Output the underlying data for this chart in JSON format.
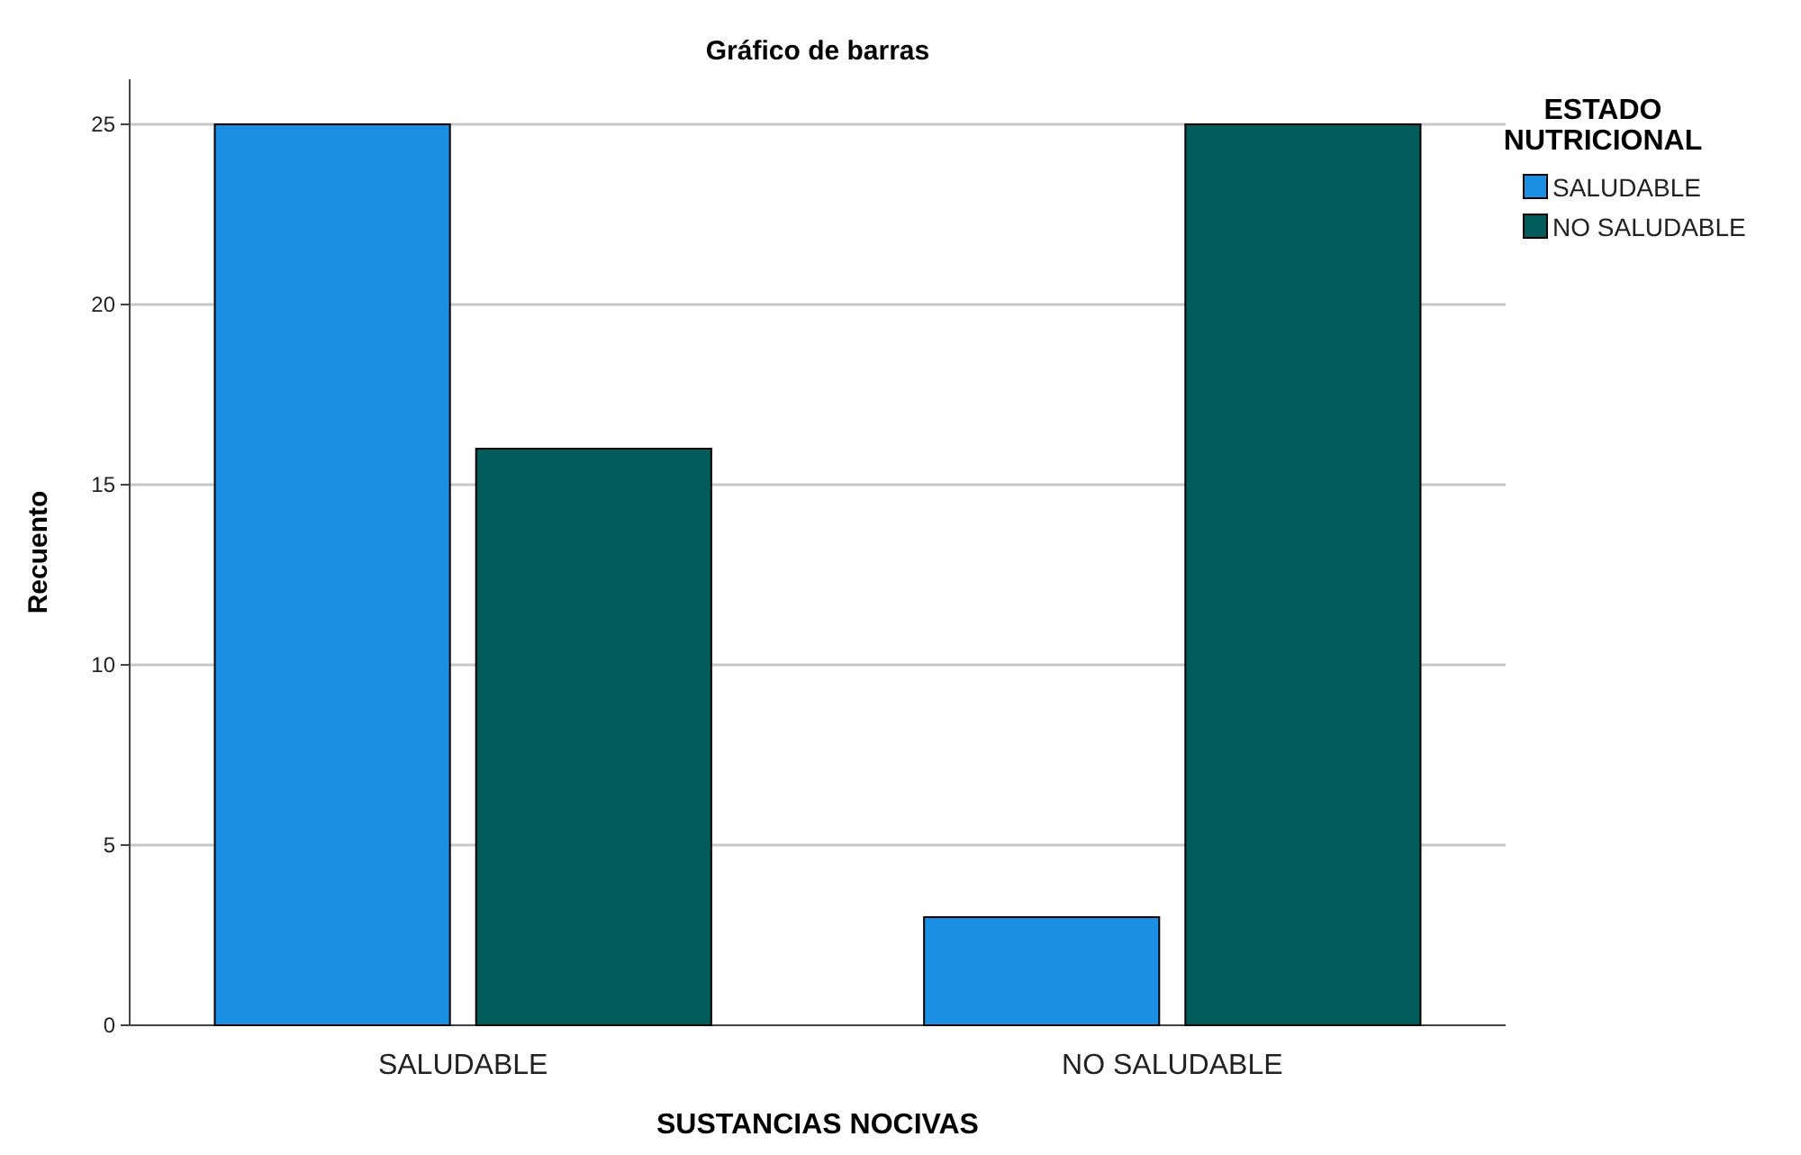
{
  "chart_data": {
    "type": "bar",
    "title": "Gráfico de barras",
    "xlabel": "SUSTANCIAS NOCIVAS",
    "ylabel": "Recuento",
    "legend_title": "ESTADO NUTRICIONAL",
    "categories": [
      "SALUDABLE",
      "NO SALUDABLE"
    ],
    "series": [
      {
        "name": "SALUDABLE",
        "color": "#1a8fe3",
        "values": [
          25,
          3
        ]
      },
      {
        "name": "NO SALUDABLE",
        "color": "#005b5b",
        "values": [
          16,
          25
        ]
      }
    ],
    "ylim": [
      0,
      26.25
    ],
    "yticks": [
      0,
      5,
      10,
      15,
      20,
      25
    ],
    "grid": "y",
    "legend": "top right"
  }
}
